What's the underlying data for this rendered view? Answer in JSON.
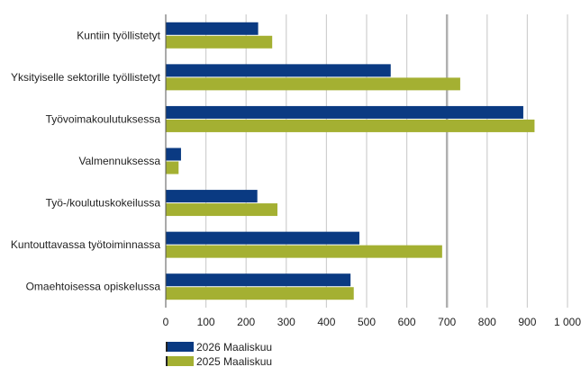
{
  "chart_data": {
    "type": "bar",
    "orientation": "horizontal",
    "categories": [
      "Kuntiin työllistetyt",
      "Yksityiselle sektorille työllistetyt",
      "Työvoimakoulutuksessa",
      "Valmennuksessa",
      "Työ-/koulutuskokeilussa",
      "Kuntouttavassa työtoiminnassa",
      "Omaehtoisessa opiskelussa"
    ],
    "series": [
      {
        "name": "2026 Maaliskuu",
        "color": "#0a3a82",
        "values": [
          230,
          560,
          890,
          38,
          228,
          482,
          460
        ]
      },
      {
        "name": "2025 Maaliskuu",
        "color": "#a4b032",
        "values": [
          265,
          733,
          918,
          32,
          278,
          688,
          468
        ]
      }
    ],
    "xlim": [
      0,
      1000
    ],
    "xticks": [
      0,
      100,
      200,
      300,
      400,
      500,
      600,
      700,
      800,
      900,
      1000
    ],
    "xtick_labels": [
      "0",
      "100",
      "200",
      "300",
      "400",
      "500",
      "600",
      "700",
      "800",
      "900",
      "1 000"
    ],
    "grid": true,
    "legend_placement": "bottom-left"
  }
}
